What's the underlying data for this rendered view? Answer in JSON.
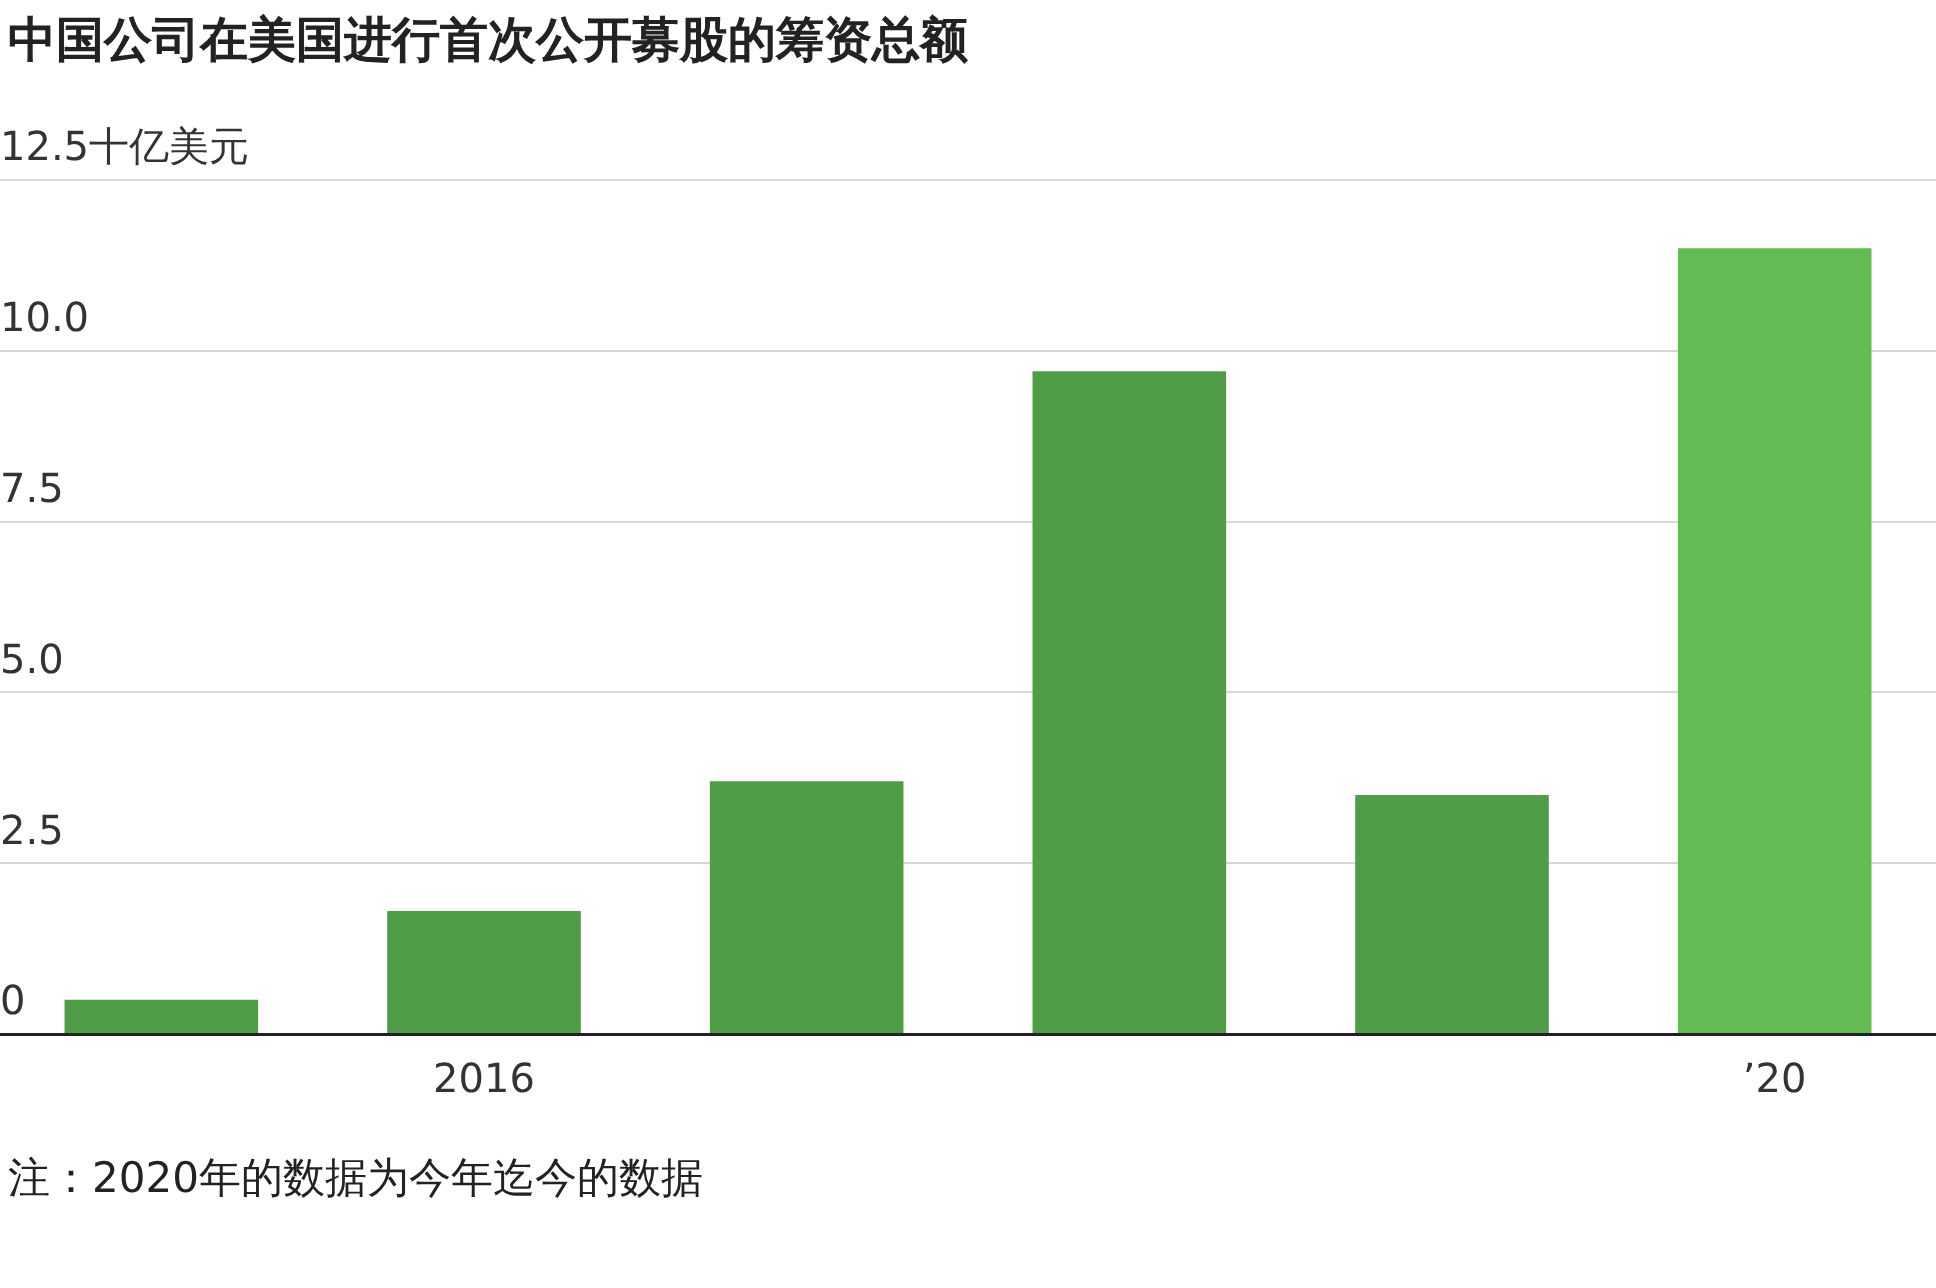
{
  "chart_data": {
    "type": "bar",
    "title": "中国公司在美国进行首次公开募股的筹资总额",
    "categories": [
      null,
      "2016",
      null,
      null,
      null,
      "’20"
    ],
    "values": [
      0.5,
      1.8,
      3.7,
      9.7,
      3.5,
      11.5
    ],
    "colors": [
      "#4f9e47",
      "#4f9e47",
      "#4f9e47",
      "#4f9e47",
      "#4f9e47",
      "#62bb53"
    ],
    "ylim": [
      0,
      12.5
    ],
    "yticks": [
      0,
      {
        "value": 2.5,
        "label": "2.5"
      },
      {
        "value": 5,
        "label": "5.0"
      },
      {
        "value": 7.5,
        "label": "7.5"
      },
      {
        "value": 10,
        "label": "10.0"
      },
      {
        "value": 12.5,
        "label": "12.5十亿美元"
      }
    ],
    "grid": "y",
    "annotations": [
      "注：2020年的数据为今年迄今的数据"
    ]
  }
}
